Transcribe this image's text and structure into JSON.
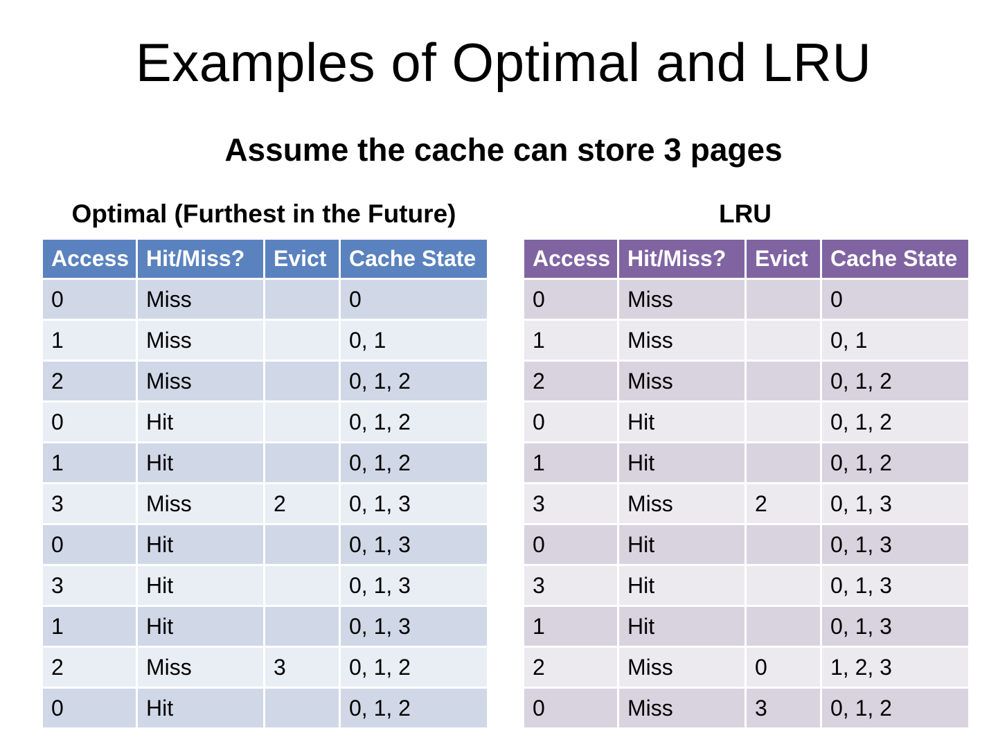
{
  "title": "Examples of Optimal and LRU",
  "subtitle": "Assume the cache can store 3 pages",
  "optimal": {
    "heading": "Optimal (Furthest in the Future)",
    "columns": [
      "Access",
      "Hit/Miss?",
      "Evict",
      "Cache State"
    ],
    "rows": [
      {
        "access": "0",
        "result": "Miss",
        "evict": "",
        "state": "0"
      },
      {
        "access": "1",
        "result": "Miss",
        "evict": "",
        "state": "0, 1"
      },
      {
        "access": "2",
        "result": "Miss",
        "evict": "",
        "state": "0, 1, 2"
      },
      {
        "access": "0",
        "result": "Hit",
        "evict": "",
        "state": "0, 1, 2"
      },
      {
        "access": "1",
        "result": "Hit",
        "evict": "",
        "state": "0, 1, 2"
      },
      {
        "access": "3",
        "result": "Miss",
        "evict": "2",
        "state": "0, 1, 3"
      },
      {
        "access": "0",
        "result": "Hit",
        "evict": "",
        "state": "0, 1, 3"
      },
      {
        "access": "3",
        "result": "Hit",
        "evict": "",
        "state": "0, 1, 3"
      },
      {
        "access": "1",
        "result": "Hit",
        "evict": "",
        "state": "0, 1, 3"
      },
      {
        "access": "2",
        "result": "Miss",
        "evict": "3",
        "state": "0, 1, 2"
      },
      {
        "access": "0",
        "result": "Hit",
        "evict": "",
        "state": "0, 1, 2"
      }
    ]
  },
  "lru": {
    "heading": "LRU",
    "columns": [
      "Access",
      "Hit/Miss?",
      "Evict",
      "Cache State"
    ],
    "rows": [
      {
        "access": "0",
        "result": "Miss",
        "evict": "",
        "state": "0"
      },
      {
        "access": "1",
        "result": "Miss",
        "evict": "",
        "state": "0, 1"
      },
      {
        "access": "2",
        "result": "Miss",
        "evict": "",
        "state": "0, 1, 2"
      },
      {
        "access": "0",
        "result": "Hit",
        "evict": "",
        "state": "0, 1, 2"
      },
      {
        "access": "1",
        "result": "Hit",
        "evict": "",
        "state": "0, 1, 2"
      },
      {
        "access": "3",
        "result": "Miss",
        "evict": "2",
        "state": "0, 1, 3"
      },
      {
        "access": "0",
        "result": "Hit",
        "evict": "",
        "state": "0, 1, 3"
      },
      {
        "access": "3",
        "result": "Hit",
        "evict": "",
        "state": "0, 1, 3"
      },
      {
        "access": "1",
        "result": "Hit",
        "evict": "",
        "state": "0, 1, 3"
      },
      {
        "access": "2",
        "result": "Miss",
        "evict": "0",
        "state": "1, 2, 3"
      },
      {
        "access": "0",
        "result": "Miss",
        "evict": "3",
        "state": "0, 1, 2"
      }
    ]
  },
  "colors": {
    "optimal_header": "#5a82be",
    "optimal_row_odd": "#d0d8e7",
    "optimal_row_even": "#e9edf4",
    "lru_header": "#8064a2",
    "lru_row_odd": "#d9d3e0",
    "lru_row_even": "#ece9ef"
  }
}
